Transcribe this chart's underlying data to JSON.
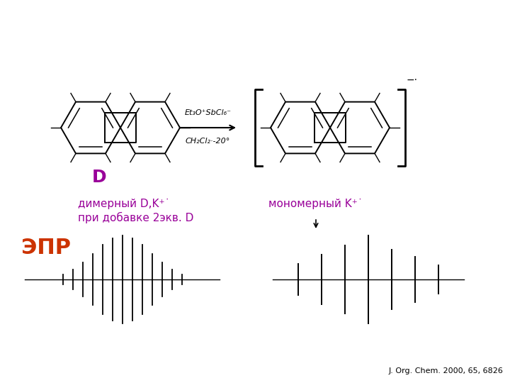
{
  "bg_color": "#ffffff",
  "label_color": "#990099",
  "epr_color": "#cc3300",
  "epr_label": "ЭПР",
  "monomer_label": "мономерный K⁺˙",
  "dimer_line1": "димерный D,K⁺˙",
  "dimer_line2": "при добавке 2экв. D",
  "reagent_line1": "Et₃O⁺SbCl₆⁻",
  "reagent_line2": "CH₂Cl₂·-20°",
  "D_label": "D",
  "citation": "J. Org. Chem. 2000, 65, 6826",
  "radical_anion_label": "−·"
}
